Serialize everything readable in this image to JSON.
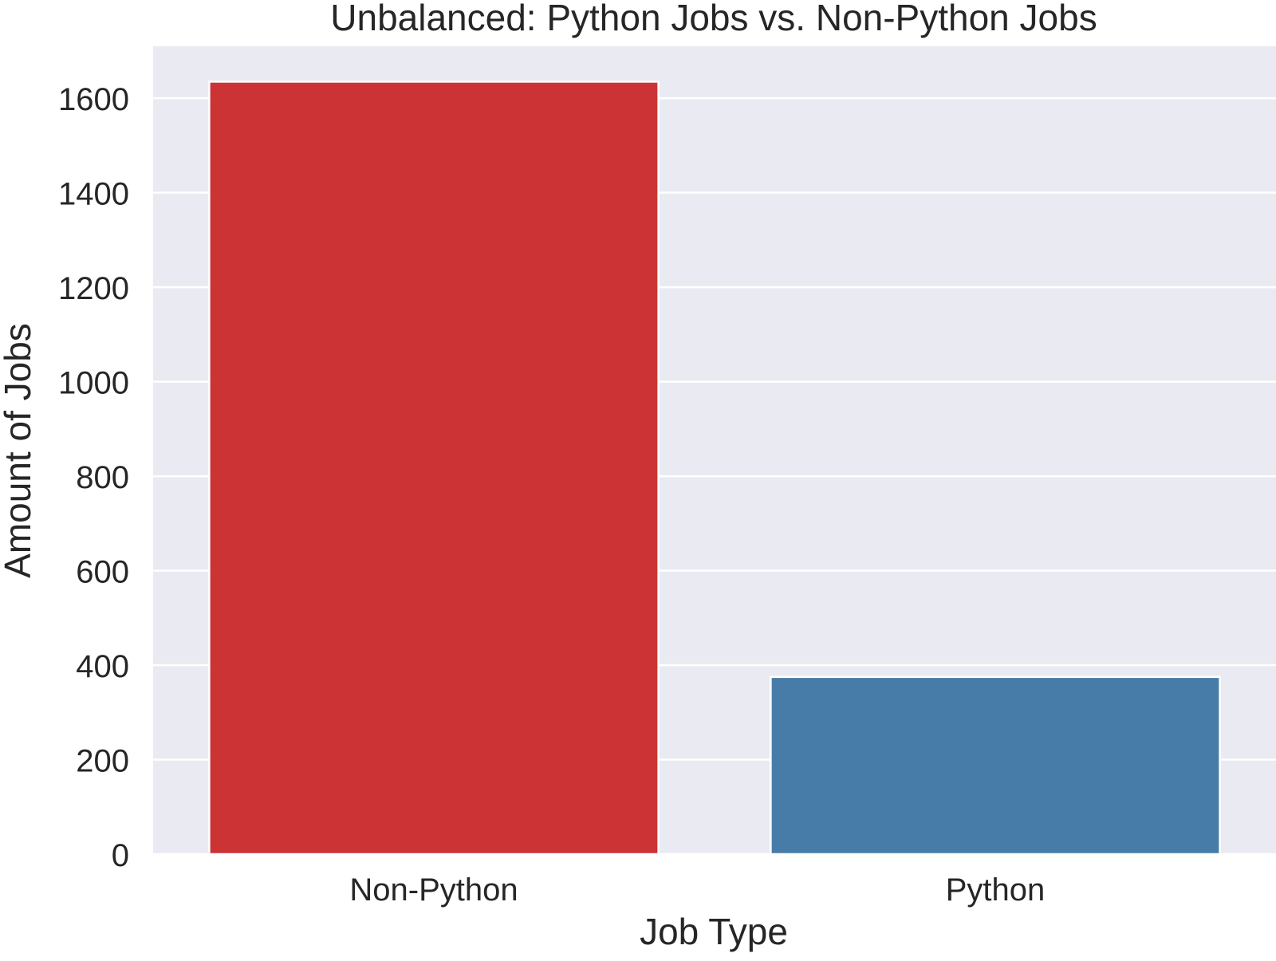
{
  "chart_data": {
    "type": "bar",
    "title": "Unbalanced: Python Jobs vs. Non-Python Jobs",
    "xlabel": "Job Type",
    "ylabel": "Amount of Jobs",
    "categories": [
      "Non-Python",
      "Python"
    ],
    "values": [
      1635,
      375
    ],
    "colors": [
      "#cb3335",
      "#477ca8"
    ],
    "ylim": [
      0,
      1710
    ],
    "yticks": [
      0,
      200,
      400,
      600,
      800,
      1000,
      1200,
      1400,
      1600
    ],
    "grid": true,
    "plot_background": "#eaeaf2",
    "grid_color": "#ffffff"
  }
}
